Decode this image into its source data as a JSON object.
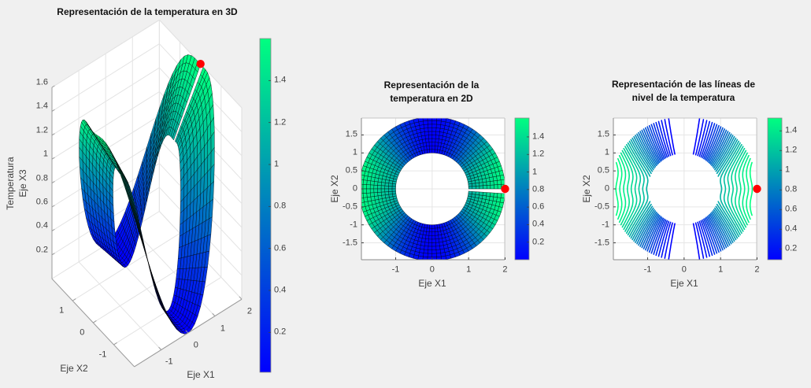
{
  "figure": {
    "background": "#f0f0f0",
    "axes_background": "#ffffff",
    "marker_color": "#ff0000"
  },
  "chart_data": [
    {
      "type": "surface3d",
      "title": "Representación de la temperatura en 3D",
      "xlabel": "Eje X1",
      "ylabel": "Eje X2",
      "zlabel_lines": [
        "Temperatura",
        "Eje X3"
      ],
      "view": {
        "az": -37.5,
        "el": 55
      },
      "xlim": [
        -2,
        2
      ],
      "ylim": [
        -2,
        2
      ],
      "zlim": [
        0,
        1.6
      ],
      "grid": true,
      "xticks": [
        -1,
        0,
        1,
        2
      ],
      "xtick_labels": [
        "-1",
        "0",
        "1",
        "2"
      ],
      "yticks": [
        -1,
        0,
        1
      ],
      "ytick_labels": [
        "-1",
        "0",
        "1"
      ],
      "zticks": [
        0.2,
        0.4,
        0.6,
        0.8,
        1,
        1.2,
        1.4,
        1.6
      ],
      "ztick_labels": [
        "0.2",
        "0.4",
        "0.6",
        "0.8",
        "1",
        "1.2",
        "1.4",
        "1.6"
      ],
      "colorbar": {
        "colormap": "winter",
        "clim": [
          0.01,
          1.6
        ],
        "ticks": [
          0.2,
          0.4,
          0.6,
          0.8,
          1,
          1.2,
          1.4
        ],
        "tick_labels": [
          "0.2",
          "0.4",
          "0.6",
          "0.8",
          "1",
          "1.2",
          "1.4"
        ]
      },
      "surface_model": {
        "domain": "annulus",
        "r_inner": 1,
        "r_outer": 2,
        "amp_inner": 1.15,
        "amp_outer": 1.66,
        "profile_exponent": 3,
        "axis_dip": 0.04,
        "dip_width": 0.25,
        "radial_divisions": 10,
        "angular_points": 96,
        "T_min_on_x2_axis": 0,
        "T_on_x1_axis_inner": 1.1,
        "T_on_x1_axis_outer": 1.6
      },
      "marker": {
        "x": 2,
        "y": 0,
        "z": 1.6
      }
    },
    {
      "type": "surface2d",
      "title_lines": [
        "Representación de la",
        "temperatura en 2D"
      ],
      "xlabel": "Eje X1",
      "ylabel": "Eje X2",
      "xlim": [
        -1.94,
        1.99
      ],
      "ylim": [
        -1.97,
        1.97
      ],
      "grid": true,
      "xticks": [
        -1,
        0,
        1,
        2
      ],
      "xtick_labels": [
        "-1",
        "0",
        "1",
        "2"
      ],
      "yticks": [
        -1.5,
        -1,
        -0.5,
        0,
        0.5,
        1,
        1.5
      ],
      "ytick_labels": [
        "-1.5",
        "-1",
        "-0.5",
        "0",
        "0.5",
        "1",
        "1.5"
      ],
      "colorbar": {
        "colormap": "winter",
        "clim": [
          0,
          1.615
        ],
        "ticks": [
          0.2,
          0.4,
          0.6,
          0.8,
          1,
          1.2,
          1.4
        ],
        "tick_labels": [
          "0.2",
          "0.4",
          "0.6",
          "0.8",
          "1",
          "1.2",
          "1.4"
        ]
      },
      "surface_model": {
        "domain": "annulus",
        "r_inner": 1,
        "r_outer": 2,
        "amp_inner": 1.15,
        "amp_outer": 1.66,
        "profile_exponent": 3,
        "axis_dip": 0.04,
        "dip_width": 0.25,
        "radial_divisions": 10,
        "angular_points": 96
      },
      "marker": {
        "x": 2,
        "y": 0
      }
    },
    {
      "type": "contour",
      "title_lines": [
        "Representación de las líneas de",
        "nivel de la temperatura"
      ],
      "xlabel": "Eje X1",
      "ylabel": "Eje X2",
      "xlim": [
        -1.94,
        1.99
      ],
      "ylim": [
        -1.97,
        1.97
      ],
      "grid": true,
      "xticks": [
        -1,
        0,
        1,
        2
      ],
      "xtick_labels": [
        "-1",
        "0",
        "1",
        "2"
      ],
      "yticks": [
        -1.5,
        -1,
        -0.5,
        0,
        0.5,
        1,
        1.5
      ],
      "ytick_labels": [
        "-1.5",
        "-1",
        "-0.5",
        "0",
        "0.5",
        "1",
        "1.5"
      ],
      "levels": {
        "min": 0.09,
        "max": 1.53,
        "count": 29
      },
      "colorbar": {
        "colormap": "winter",
        "clim": [
          0.09,
          1.53
        ],
        "ticks": [
          0.2,
          0.4,
          0.6,
          0.8,
          1,
          1.2,
          1.4
        ],
        "tick_labels": [
          "0.2",
          "0.4",
          "0.6",
          "0.8",
          "1",
          "1.2",
          "1.4"
        ]
      },
      "surface_model": {
        "domain": "annulus",
        "r_inner": 1,
        "r_outer": 2,
        "amp_inner": 1.15,
        "amp_outer": 1.66,
        "profile_exponent": 3,
        "axis_dip": 0.04,
        "dip_width": 0.25
      },
      "marker": {
        "x": 2,
        "y": 0
      }
    }
  ]
}
